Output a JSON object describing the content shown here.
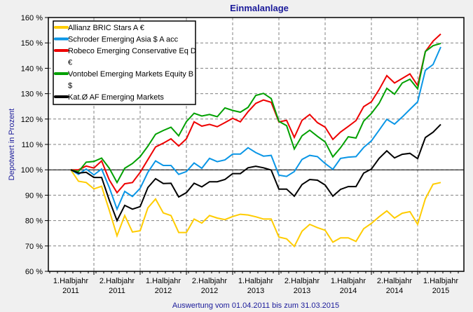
{
  "chart_data": {
    "type": "line",
    "title": "Einmalanlage",
    "xlabel": "Auswertung vom 01.04.2011 bis zum 31.03.2015",
    "ylabel": "Depotwert in Prozent",
    "ylim": [
      60,
      160
    ],
    "yticks": [
      60,
      70,
      80,
      90,
      100,
      110,
      120,
      130,
      140,
      150,
      160
    ],
    "ytick_labels": [
      "60 %",
      "70 %",
      "80 %",
      "90 %",
      "100 %",
      "110 %",
      "120 %",
      "130 %",
      "140 %",
      "150 %",
      "160 %"
    ],
    "x_points": 49,
    "x_period": "monthly, 31.03.2011 to 31.03.2015",
    "x_categories": [
      {
        "line1": "1.Halbjahr",
        "line2": "2011"
      },
      {
        "line1": "2.Halbjahr",
        "line2": "2011"
      },
      {
        "line1": "1.Halbjahr",
        "line2": "2012"
      },
      {
        "line1": "2.Halbjahr",
        "line2": "2012"
      },
      {
        "line1": "1.Halbjahr",
        "line2": "2013"
      },
      {
        "line1": "2.Halbjahr",
        "line2": "2013"
      },
      {
        "line1": "1.Halbjahr",
        "line2": "2014"
      },
      {
        "line1": "2.Halbjahr",
        "line2": "2014"
      },
      {
        "line1": "1.Halbjahr",
        "line2": "2015"
      }
    ],
    "reference_line": 100,
    "grid": true,
    "legend_position": "top-left",
    "series": [
      {
        "name": "Allianz BRIC Stars A €",
        "color": "#ffcc00",
        "values": [
          100,
          95.5,
          95,
          92.5,
          93.5,
          84,
          74,
          82,
          75.5,
          76,
          85,
          88.5,
          83,
          82,
          75.3,
          75.3,
          80.6,
          79,
          82,
          81,
          80.4,
          81.6,
          82.5,
          82.2,
          81.5,
          80.6,
          80.6,
          73.5,
          72.8,
          69.8,
          75.8,
          78.5,
          77.2,
          76.2,
          71.5,
          73.2,
          73.2,
          71.8,
          76.8,
          78.9,
          81.5,
          83.8,
          81,
          82.9,
          83.5,
          78.5,
          88.6,
          94.3,
          95
        ]
      },
      {
        "name": "Schroder Emerging Asia $ A acc",
        "color": "#0a96e6",
        "values": [
          100,
          98.2,
          100.3,
          98,
          100.3,
          93,
          84.5,
          91.5,
          89.5,
          92.7,
          99,
          103.5,
          101.7,
          101.7,
          98.2,
          99.3,
          102.7,
          100.6,
          104.5,
          103.2,
          103.9,
          106.2,
          106.2,
          108.7,
          106.8,
          105.4,
          105.7,
          97.9,
          97.4,
          99.3,
          104.1,
          105.7,
          105.2,
          102.5,
          100.2,
          104.5,
          105,
          105.2,
          108.8,
          111.4,
          115.6,
          119.9,
          118,
          120.8,
          123.8,
          126.8,
          139.2,
          141.5,
          148.4
        ]
      },
      {
        "name": "Robeco Emerging Conservative Eq D €",
        "color": "#ee0000",
        "values": [
          100,
          100,
          101.5,
          100.7,
          103.5,
          96,
          91,
          94.5,
          95,
          99,
          104,
          109,
          110.5,
          112.2,
          109.4,
          112.2,
          118.9,
          117.2,
          117.9,
          117,
          118.6,
          120.3,
          118.9,
          122.9,
          126.2,
          127.5,
          126.6,
          118.9,
          119.5,
          112.8,
          119.5,
          121.8,
          118.6,
          116.8,
          112,
          114.9,
          117.1,
          119.4,
          124.9,
          126.8,
          131.6,
          137.1,
          134.2,
          136,
          137.8,
          133.2,
          146.6,
          150.7,
          153.5
        ]
      },
      {
        "name": "Vontobel Emerging Markets Equity B $",
        "color": "#00a000",
        "values": [
          100,
          99.3,
          103,
          103.3,
          104.6,
          100.6,
          95,
          100.6,
          102.5,
          105.2,
          109.3,
          114,
          115.5,
          116.8,
          113.4,
          119,
          122.3,
          121.2,
          121.8,
          120.9,
          124.4,
          123.4,
          122.7,
          124.6,
          129.3,
          130.1,
          128.1,
          119.1,
          117.4,
          108.2,
          113.4,
          115.6,
          113.2,
          111,
          105.1,
          108.7,
          113,
          112.5,
          119.2,
          122.2,
          126.2,
          132.1,
          129.8,
          134.2,
          135.7,
          131.9,
          146.6,
          148.9,
          149.8
        ]
      },
      {
        "name": "Kat.Ø AF Emerging Markets",
        "color": "#000000",
        "values": [
          100,
          98.7,
          99,
          97,
          97,
          88,
          80,
          86,
          84.5,
          85.5,
          93,
          96.5,
          94.6,
          94.7,
          89.3,
          91,
          94.7,
          93.3,
          95.3,
          95.3,
          96.2,
          98.5,
          98.5,
          100.8,
          101.4,
          100.8,
          99.9,
          92.4,
          92.4,
          89.6,
          94.2,
          96.2,
          95.9,
          94,
          89.6,
          92.3,
          93.4,
          93.4,
          98.7,
          100.3,
          104.5,
          107.5,
          104.7,
          106.1,
          106.5,
          104.4,
          112.7,
          114.8,
          117.9
        ]
      }
    ]
  },
  "legend": {
    "items": [
      {
        "label_lines": [
          "Allianz BRIC Stars A €"
        ]
      },
      {
        "label_lines": [
          "Schroder Emerging Asia $ A acc"
        ]
      },
      {
        "label_lines": [
          "Robeco Emerging Conservative Eq D",
          "€"
        ]
      },
      {
        "label_lines": [
          "Vontobel Emerging Markets Equity B",
          "$"
        ]
      },
      {
        "label_lines": [
          "Kat.Ø AF Emerging Markets"
        ]
      }
    ]
  }
}
